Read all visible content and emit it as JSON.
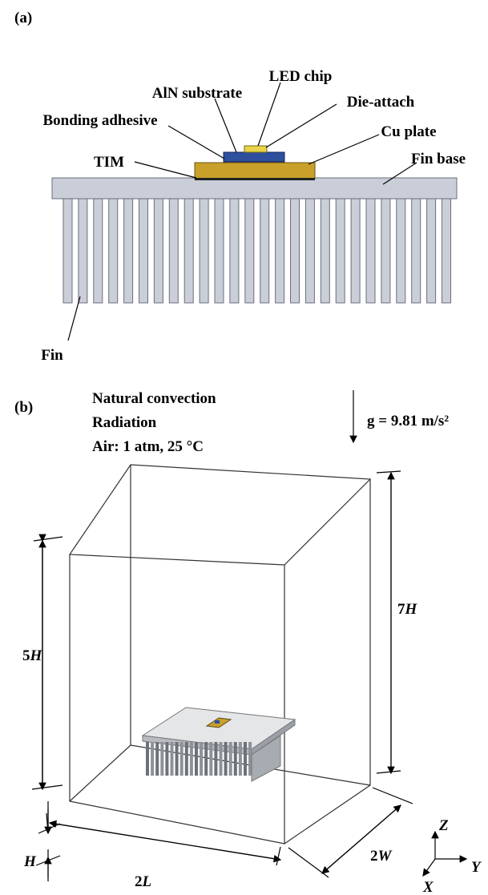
{
  "panel_a": {
    "label": "(a)",
    "parts": {
      "led_chip": "LED chip",
      "aln_substrate": "AlN substrate",
      "die_attach": "Die-attach",
      "bonding_adhesive": "Bonding adhesive",
      "cu_plate": "Cu plate",
      "tim": "TIM",
      "fin_base": "Fin base",
      "fin": "Fin"
    }
  },
  "panel_b": {
    "label": "(b)",
    "conditions": [
      "Natural convection",
      "Radiation",
      "Air: 1 atm,  25 °C"
    ],
    "gravity": "g = 9.81 m/s²",
    "dimensions": {
      "height_below": {
        "number": "5",
        "symbol": "H"
      },
      "height_total": {
        "number": "7",
        "symbol": "H"
      },
      "height": {
        "symbol": "H"
      },
      "length": {
        "number": "2",
        "symbol": "L"
      },
      "width": {
        "number": "2",
        "symbol": "W"
      }
    },
    "axes": {
      "z": "Z",
      "y": "Y",
      "x": "X"
    }
  }
}
